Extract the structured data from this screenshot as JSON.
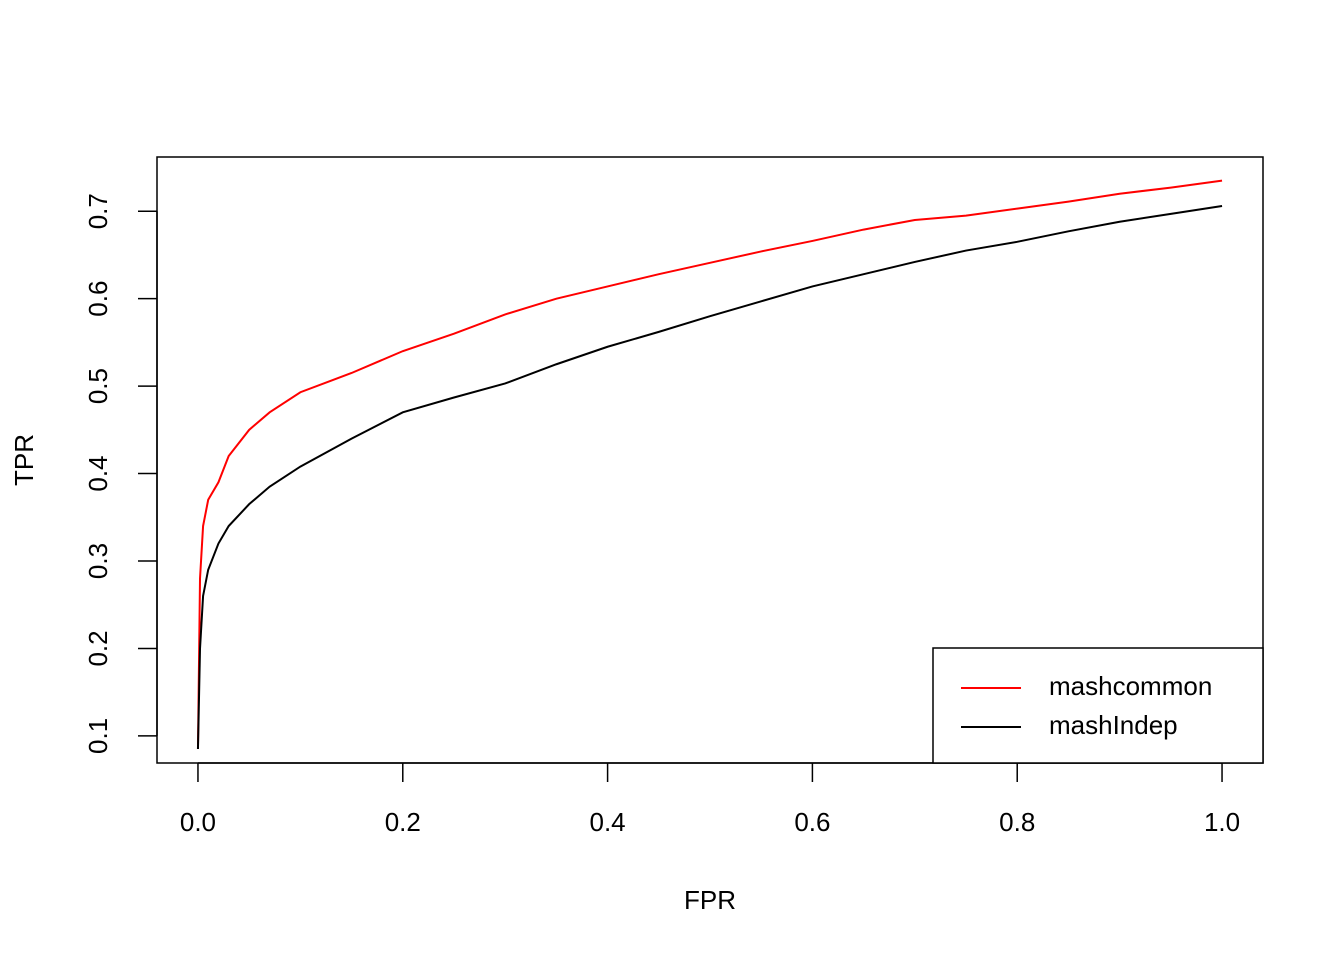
{
  "chart_data": {
    "type": "line",
    "x_label": "FPR",
    "y_label": "TPR",
    "x": [
      0,
      0.002,
      0.005,
      0.01,
      0.02,
      0.03,
      0.05,
      0.07,
      0.1,
      0.15,
      0.2,
      0.25,
      0.3,
      0.35,
      0.4,
      0.45,
      0.5,
      0.55,
      0.6,
      0.65,
      0.7,
      0.75,
      0.8,
      0.85,
      0.9,
      0.95,
      1.0
    ],
    "series": [
      {
        "name": "mashcommon",
        "color": "#ff0000",
        "values": [
          0.085,
          0.28,
          0.34,
          0.37,
          0.39,
          0.42,
          0.45,
          0.47,
          0.493,
          0.515,
          0.54,
          0.56,
          0.582,
          0.6,
          0.614,
          0.628,
          0.641,
          0.654,
          0.666,
          0.679,
          0.69,
          0.695,
          0.703,
          0.711,
          0.72,
          0.727,
          0.735
        ]
      },
      {
        "name": "mashIndep",
        "color": "#000000",
        "values": [
          0.085,
          0.2,
          0.26,
          0.29,
          0.32,
          0.34,
          0.365,
          0.385,
          0.408,
          0.44,
          0.47,
          0.487,
          0.503,
          0.525,
          0.545,
          0.562,
          0.58,
          0.597,
          0.614,
          0.628,
          0.642,
          0.655,
          0.665,
          0.677,
          0.688,
          0.697,
          0.706
        ]
      }
    ],
    "xlim": [
      -0.04,
      1.04
    ],
    "ylim": [
      0.069,
      0.762
    ],
    "xticks": [
      {
        "value": 0,
        "label": "0.0"
      },
      0.2,
      0.4,
      0.6,
      0.8,
      {
        "value": 1,
        "label": "1.0"
      }
    ],
    "yticks": [
      0.1,
      0.2,
      0.3,
      0.4,
      0.5,
      0.6,
      0.7
    ],
    "legend": "bottomright"
  }
}
